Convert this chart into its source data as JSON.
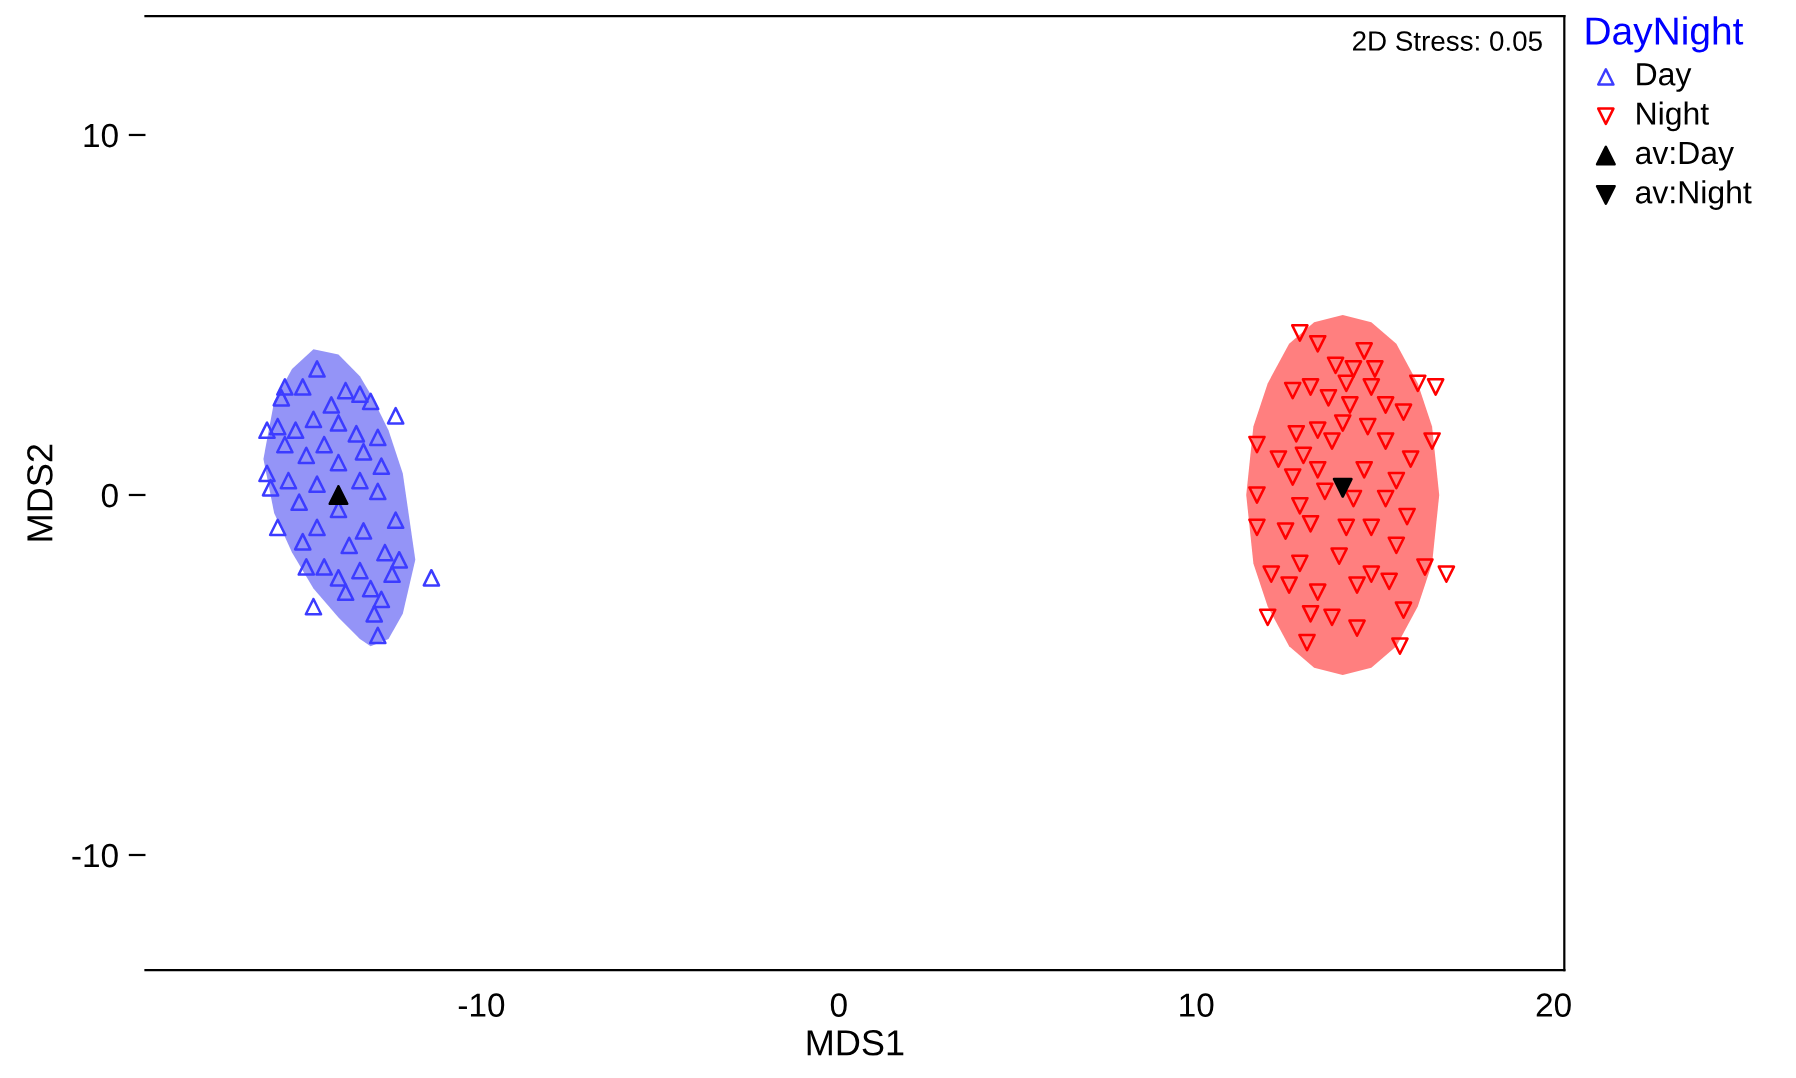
{
  "chart_data": {
    "type": "scatter",
    "xlabel": "MDS1",
    "ylabel": "MDS2",
    "legend_title": "DayNight",
    "legend": "right",
    "grid": false,
    "xlim": [
      -19.4,
      20.3
    ],
    "xticks": [
      -10,
      0,
      10,
      20
    ],
    "ylim": [
      -13.2,
      13.3
    ],
    "yticks": [
      -10,
      0,
      10
    ],
    "annotations": [
      "2D Stress: 0.05"
    ],
    "series": [
      {
        "type": "area",
        "color": "#9494f7",
        "x": [
          -16.1,
          -15.8,
          -15.3,
          -14.7,
          -14.0,
          -13.4,
          -13.1,
          -12.6,
          -12.2,
          -11.85
        ],
        "values": [
          null,
          null,
          null,
          null,
          null,
          null,
          null,
          null,
          null,
          null
        ],
        "lower": [
          1.0,
          -0.5,
          -1.6,
          -2.6,
          -3.4,
          -4.0,
          -4.2,
          -4.0,
          -3.3,
          -1.8
        ],
        "upper": [
          1.0,
          2.6,
          3.5,
          4.05,
          3.9,
          3.3,
          2.8,
          1.8,
          0.6,
          -1.8
        ]
      },
      {
        "type": "area",
        "color": "#ff7f7f",
        "x": [
          11.4,
          11.6,
          12.0,
          12.6,
          13.3,
          14.1,
          14.9,
          15.6,
          16.2,
          16.6,
          16.8
        ],
        "values": [
          null,
          null,
          null,
          null,
          null,
          null,
          null,
          null,
          null,
          null,
          null
        ],
        "lower": [
          0,
          -1.9,
          -3.1,
          -4.2,
          -4.8,
          -5.0,
          -4.8,
          -4.2,
          -3.1,
          -1.9,
          0
        ],
        "upper": [
          0,
          1.9,
          3.1,
          4.2,
          4.8,
          5.0,
          4.8,
          4.2,
          3.1,
          1.9,
          0
        ]
      },
      {
        "name": "Day",
        "color": "#3c3cff",
        "marker": "triangle",
        "x": [
          -14.6,
          -15.0,
          -15.5,
          -13.8,
          -13.4,
          -15.6,
          -13.1,
          -12.4,
          -16.0,
          -14.7,
          -14.0,
          -15.2,
          -13.5,
          -12.9,
          -15.5,
          -14.4,
          -13.3,
          -14.9,
          -16.0,
          -14.0,
          -12.8,
          -15.4,
          -14.6,
          -13.4,
          -15.9,
          -12.9,
          -15.1,
          -14.0,
          -12.4,
          -15.7,
          -14.6,
          -13.3,
          -15.0,
          -13.7,
          -12.7,
          -14.4,
          -12.3,
          -13.4,
          -14.0,
          -12.5,
          -14.9,
          -13.1,
          -13.8,
          -12.8,
          -11.4,
          -14.7,
          -13.0,
          -12.9,
          -15.7,
          -14.2
        ],
        "values": [
          3.5,
          3.0,
          3.0,
          2.9,
          2.8,
          2.7,
          2.6,
          2.2,
          1.8,
          2.1,
          2.0,
          1.8,
          1.7,
          1.6,
          1.4,
          1.4,
          1.2,
          1.1,
          0.6,
          0.9,
          0.8,
          0.4,
          0.3,
          0.4,
          0.2,
          0.1,
          -0.2,
          -0.4,
          -0.7,
          -0.9,
          -0.9,
          -1.0,
          -1.3,
          -1.4,
          -1.6,
          -2.0,
          -1.8,
          -2.1,
          -2.3,
          -2.2,
          -2.0,
          -2.6,
          -2.7,
          -2.9,
          -2.3,
          -3.1,
          -3.3,
          -3.9,
          1.9,
          2.5
        ]
      },
      {
        "name": "Night",
        "color": "#ff0000",
        "marker": "triangle-down",
        "x": [
          12.9,
          13.4,
          14.7,
          13.9,
          14.4,
          15.0,
          16.2,
          16.7,
          12.7,
          13.2,
          14.2,
          14.9,
          13.7,
          14.3,
          15.3,
          15.8,
          12.8,
          13.4,
          14.1,
          14.8,
          16.6,
          11.7,
          12.3,
          13.0,
          13.8,
          15.3,
          16.0,
          11.7,
          12.7,
          13.4,
          14.7,
          15.6,
          12.9,
          13.6,
          14.4,
          15.3,
          15.9,
          11.7,
          12.5,
          13.2,
          14.2,
          14.9,
          15.6,
          12.1,
          12.9,
          14.0,
          14.9,
          16.4,
          17.0,
          12.6,
          13.4,
          14.5,
          15.4,
          13.2,
          13.8,
          14.5,
          12.0,
          15.8,
          13.1,
          15.7
        ],
        "values": [
          4.5,
          4.2,
          4.0,
          3.6,
          3.5,
          3.5,
          3.1,
          3.0,
          2.9,
          3.0,
          3.1,
          3.0,
          2.7,
          2.5,
          2.5,
          2.3,
          1.7,
          1.8,
          2.0,
          1.9,
          1.5,
          1.4,
          1.0,
          1.1,
          1.5,
          1.5,
          1.0,
          0.0,
          0.5,
          0.7,
          0.7,
          0.4,
          -0.3,
          0.1,
          -0.1,
          -0.1,
          -0.6,
          -0.9,
          -1.0,
          -0.8,
          -0.9,
          -0.9,
          -1.4,
          -2.2,
          -1.9,
          -1.7,
          -2.2,
          -2.0,
          -2.2,
          -2.5,
          -2.7,
          -2.5,
          -2.4,
          -3.3,
          -3.4,
          -3.7,
          -3.4,
          -3.2,
          -4.1,
          -4.2
        ]
      },
      {
        "name": "av:Day",
        "color": "#000000",
        "marker": "triangle",
        "x": [
          -14.0
        ],
        "values": [
          0.0
        ]
      },
      {
        "name": "av:Night",
        "color": "#000000",
        "marker": "triangle-down",
        "x": [
          14.1
        ],
        "values": [
          0.2
        ]
      }
    ]
  }
}
